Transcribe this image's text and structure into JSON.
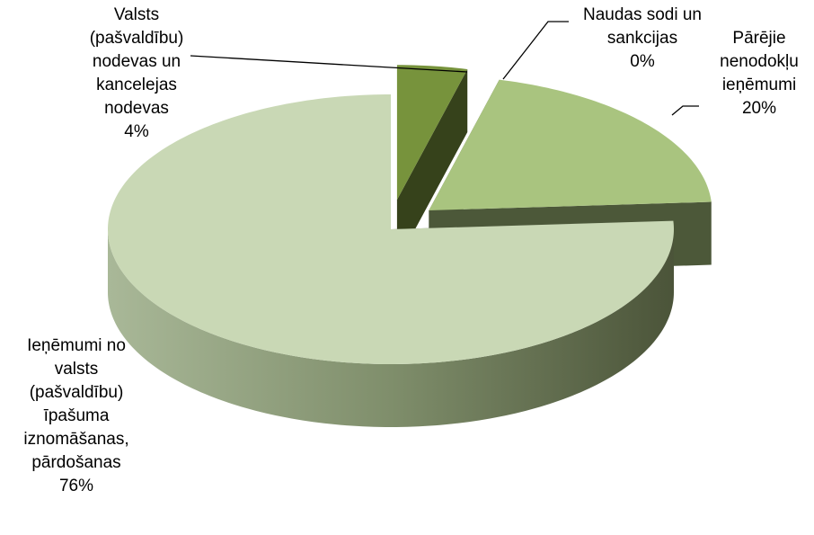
{
  "chart_data": {
    "type": "pie3d",
    "categories": [
      "Valsts (pašvaldību) nodevas un kancelejas nodevas",
      "Naudas sodi un sankcijas",
      "Pārējie nenodokļu ieņēmumi",
      "Ieņēmumi no valsts (pašvaldību) īpašuma iznomāšanas, pārdošanas"
    ],
    "values": [
      4,
      0,
      20,
      76
    ],
    "value_labels": [
      "4%",
      "0%",
      "20%",
      "76%"
    ],
    "colors": [
      "#77933c",
      "#77933c",
      "#a9c47f",
      "#c9d8b5"
    ]
  }
}
